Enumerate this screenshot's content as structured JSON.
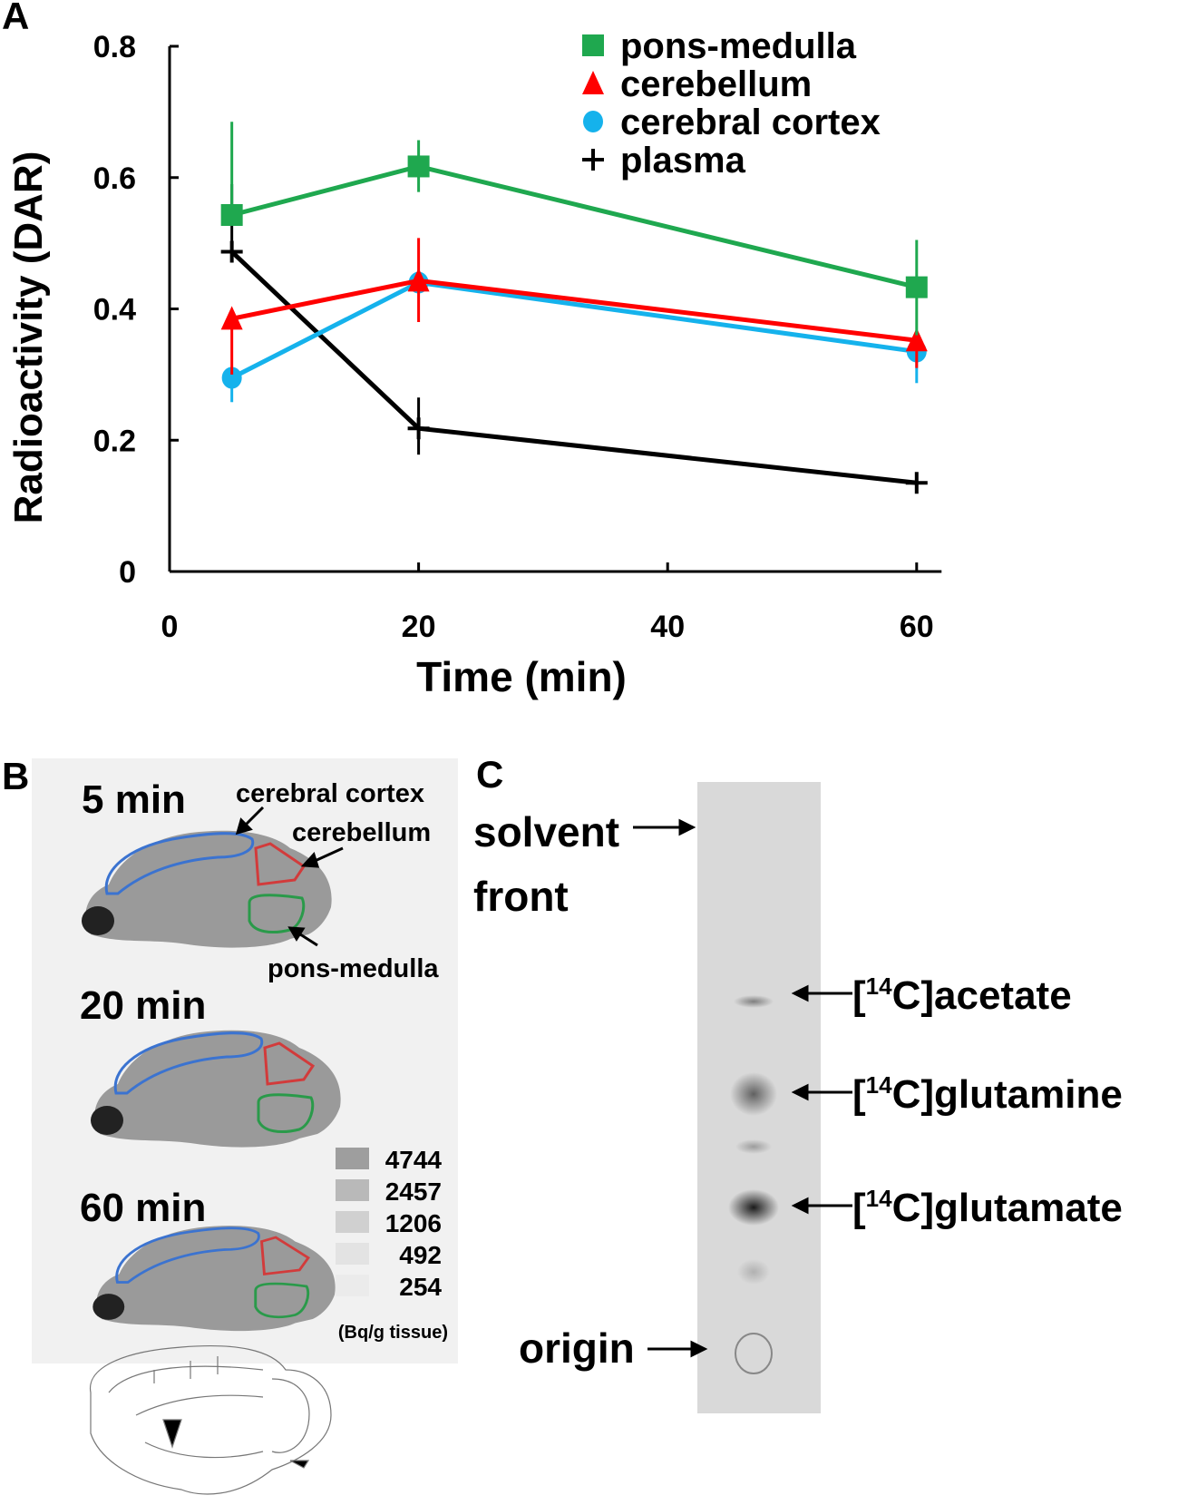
{
  "panels": {
    "a": "A",
    "b": "B",
    "c": "C"
  },
  "chart_data": {
    "type": "line",
    "title": "",
    "xlabel": "Time (min)",
    "ylabel": "Radioactivity (DAR)",
    "xlim": [
      0,
      62
    ],
    "ylim": [
      0,
      0.8
    ],
    "xticks": [
      0,
      20,
      40,
      60
    ],
    "xtick_labels": [
      "0",
      "20",
      "40",
      "60"
    ],
    "yticks": [
      0,
      0.2,
      0.4,
      0.6,
      0.8
    ],
    "ytick_labels": [
      "0",
      "0.2",
      "0.4",
      "0.6",
      "0.8"
    ],
    "legend_position": "top-right",
    "x": [
      5,
      20,
      60
    ],
    "series": [
      {
        "name": "pons-medulla",
        "marker": "square",
        "color": "#1fa84f",
        "values": [
          0.543,
          0.617,
          0.433
        ],
        "err_low": [
          0.543,
          0.578,
          0.36
        ],
        "err_high": [
          0.685,
          0.657,
          0.505
        ]
      },
      {
        "name": "cerebellum",
        "marker": "triangle",
        "color": "#ff0000",
        "values": [
          0.385,
          0.443,
          0.352
        ],
        "err_low": [
          0.3,
          0.38,
          0.31
        ],
        "err_high": [
          0.385,
          0.508,
          0.352
        ]
      },
      {
        "name": "cerebral cortex",
        "marker": "circle",
        "color": "#15b2ec",
        "values": [
          0.295,
          0.44,
          0.335
        ],
        "err_low": [
          0.258,
          0.44,
          0.287
        ],
        "err_high": [
          0.295,
          0.44,
          0.335
        ]
      },
      {
        "name": "plasma",
        "marker": "plus",
        "color": "#000000",
        "values": [
          0.487,
          0.218,
          0.135
        ],
        "err_low": [
          0.487,
          0.178,
          0.123
        ],
        "err_high": [
          0.59,
          0.265,
          0.147
        ]
      }
    ]
  },
  "panel_b": {
    "times": [
      "5 min",
      "20 min",
      "60 min"
    ],
    "region_labels": {
      "cortex": "cerebral cortex",
      "cerebellum": "cerebellum",
      "pons": "pons-medulla"
    },
    "scale_values": [
      "4744",
      "2457",
      "1206",
      "492",
      "254"
    ],
    "scale_unit": "(Bq/g tissue)"
  },
  "panel_c": {
    "solvent_front": [
      "solvent",
      "front"
    ],
    "origin": "origin",
    "bands": [
      {
        "isotope": "14",
        "prefix": "[",
        "suffix": "C]acetate"
      },
      {
        "isotope": "14",
        "prefix": "[",
        "suffix": "C]glutamine"
      },
      {
        "isotope": "14",
        "prefix": "[",
        "suffix": "C]glutamate"
      }
    ]
  }
}
